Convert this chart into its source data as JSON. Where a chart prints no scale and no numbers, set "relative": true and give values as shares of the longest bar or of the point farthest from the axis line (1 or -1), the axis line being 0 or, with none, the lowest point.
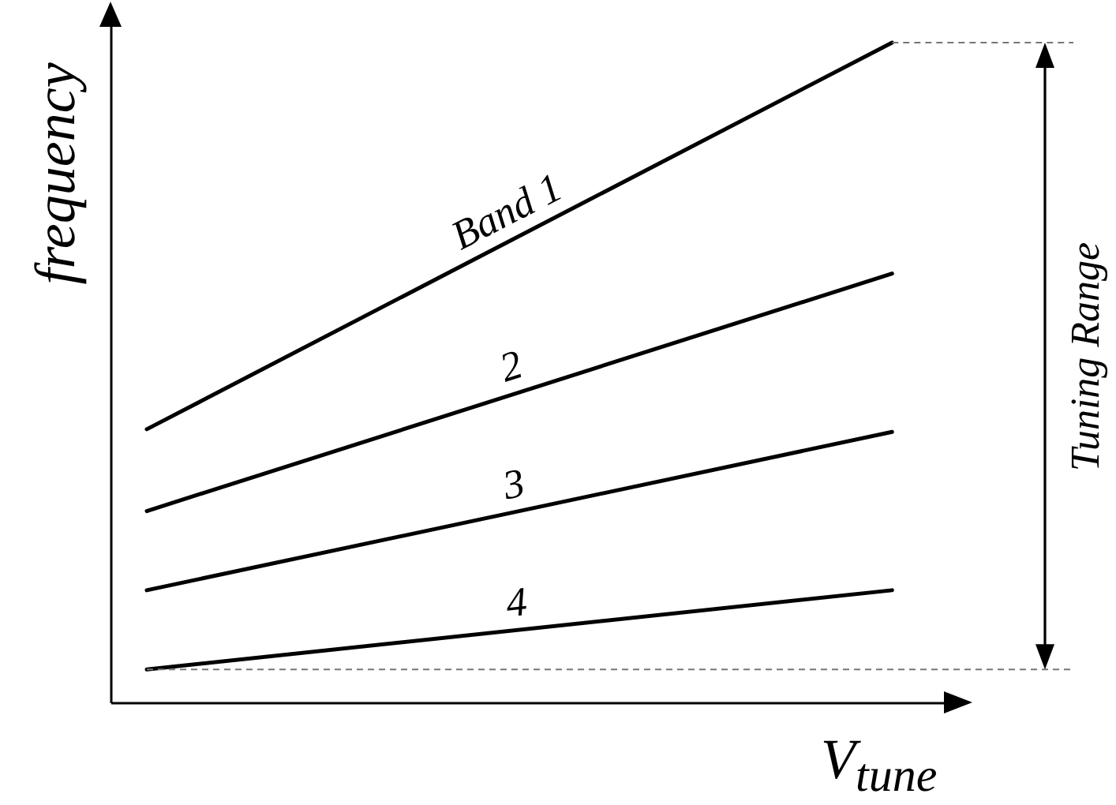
{
  "chart_data": {
    "type": "line",
    "relative": true,
    "xlabel": "V$_{tune}$",
    "ylabel": "frequency",
    "categories": [
      null,
      null
    ],
    "series": [
      {
        "name": "Band 1",
        "color": "#000000",
        "values": [
          0.414,
          1
        ]
      },
      {
        "name": "2",
        "color": "#000000",
        "values": [
          0.29,
          0.65
        ]
      },
      {
        "name": "3",
        "color": "#000000",
        "values": [
          0.17,
          0.41
        ]
      },
      {
        "name": "4",
        "color": "#000000",
        "values": [
          0.05,
          0.17
        ]
      }
    ],
    "ref_lines": [
      {
        "axis": "y",
        "value": 1,
        "color": "#777777",
        "line_style": "dashed"
      },
      {
        "axis": "y",
        "value": 0.05,
        "color": "#777777",
        "line_style": "dashed"
      }
    ],
    "annotations": [
      "Tuning Range"
    ]
  }
}
